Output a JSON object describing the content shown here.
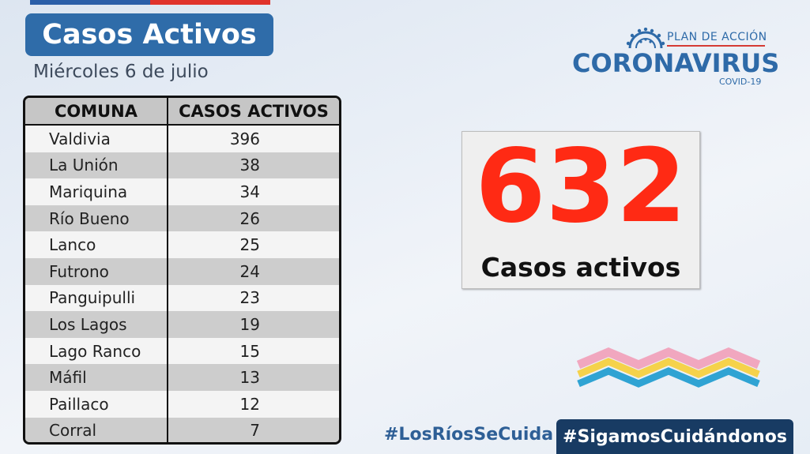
{
  "header": {
    "title": "Casos Activos",
    "date": "Miércoles 6  de julio"
  },
  "table": {
    "headers": [
      "COMUNA",
      "CASOS ACTIVOS"
    ],
    "rows": [
      {
        "comuna": "Valdivia",
        "casos": "396"
      },
      {
        "comuna": "La Unión",
        "casos": "38"
      },
      {
        "comuna": "Mariquina",
        "casos": "34"
      },
      {
        "comuna": "Río Bueno",
        "casos": "26"
      },
      {
        "comuna": "Lanco",
        "casos": "25"
      },
      {
        "comuna": "Futrono",
        "casos": "24"
      },
      {
        "comuna": "Panguipulli",
        "casos": "23"
      },
      {
        "comuna": "Los Lagos",
        "casos": "19"
      },
      {
        "comuna": "Lago Ranco",
        "casos": "15"
      },
      {
        "comuna": "Máfil",
        "casos": "13"
      },
      {
        "comuna": "Paillaco",
        "casos": "12"
      },
      {
        "comuna": "Corral",
        "casos": "7"
      }
    ]
  },
  "logo": {
    "plan": "PLAN DE ACCIÓN",
    "brand": "CORONAVIRUS",
    "sub": "COVID-19",
    "icon": "virus-icon"
  },
  "stat": {
    "value": "632",
    "label": "Casos activos",
    "color": "#ff2a14"
  },
  "footer": {
    "hashtag1": "#LosRíosSeCuida",
    "hashtag2": "#SigamosCuidándonos"
  },
  "colors": {
    "brand_blue": "#2f6ca9",
    "dark_blue": "#183b63",
    "accent_red": "#e0332b"
  }
}
